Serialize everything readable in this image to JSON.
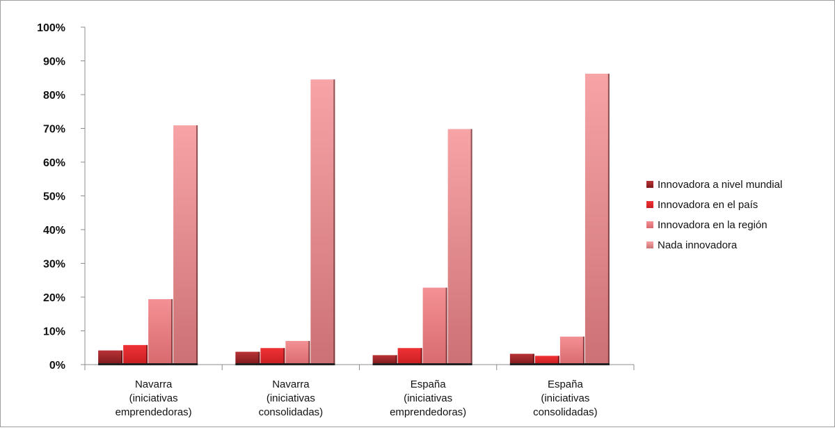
{
  "chart_data": {
    "type": "bar",
    "title": "",
    "xlabel": "",
    "ylabel": "",
    "ylim": [
      0,
      100
    ],
    "y_ticks": [
      "0%",
      "10%",
      "20%",
      "30%",
      "40%",
      "50%",
      "60%",
      "70%",
      "80%",
      "90%",
      "100%"
    ],
    "y_unit": "%",
    "grid": false,
    "legend_position": "right",
    "categories": [
      [
        "Navarra",
        "(iniciativas",
        "emprendedoras)"
      ],
      [
        "Navarra",
        "(iniciativas",
        "consolidadas)"
      ],
      [
        "España",
        "(iniciativas",
        "emprendedoras)"
      ],
      [
        "España",
        "(iniciativas",
        "consolidadas)"
      ]
    ],
    "series": [
      {
        "name": "Innovadora a nivel mundial",
        "color": "#a0272b",
        "values": [
          4.2,
          3.8,
          2.8,
          3.2
        ]
      },
      {
        "name": "Innovadora en el país",
        "color": "#e8262b",
        "values": [
          5.8,
          4.9,
          4.9,
          2.6
        ]
      },
      {
        "name": "Innovadora en la región",
        "color": "#f17c80",
        "values": [
          19.4,
          7.0,
          22.8,
          8.3
        ]
      },
      {
        "name": "Nada innovadora",
        "color": "#f4a0a2",
        "values": [
          70.9,
          84.5,
          69.8,
          86.2
        ]
      }
    ]
  }
}
